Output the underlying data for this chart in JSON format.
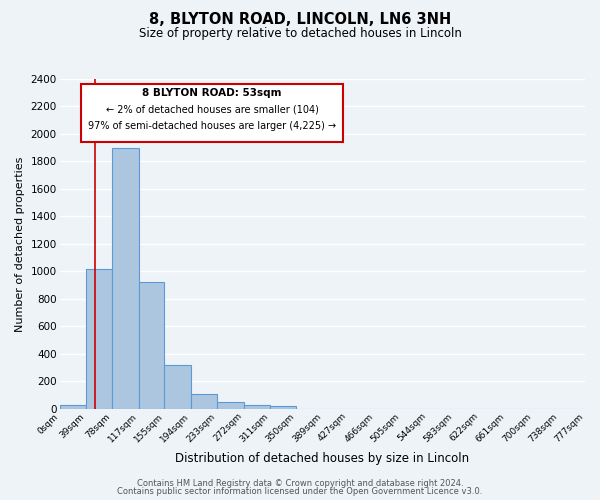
{
  "title": "8, BLYTON ROAD, LINCOLN, LN6 3NH",
  "subtitle": "Size of property relative to detached houses in Lincoln",
  "xlabel": "Distribution of detached houses by size in Lincoln",
  "ylabel": "Number of detached properties",
  "bin_edges": [
    0,
    39,
    78,
    117,
    155,
    194,
    233,
    272,
    311,
    350,
    389,
    427,
    466,
    505,
    544,
    583,
    622,
    661,
    700,
    738,
    777
  ],
  "bin_labels": [
    "0sqm",
    "39sqm",
    "78sqm",
    "117sqm",
    "155sqm",
    "194sqm",
    "233sqm",
    "272sqm",
    "311sqm",
    "350sqm",
    "389sqm",
    "427sqm",
    "466sqm",
    "505sqm",
    "544sqm",
    "583sqm",
    "622sqm",
    "661sqm",
    "700sqm",
    "738sqm",
    "777sqm"
  ],
  "counts": [
    25,
    1020,
    1900,
    920,
    320,
    110,
    50,
    25,
    20,
    0,
    0,
    0,
    0,
    0,
    0,
    0,
    0,
    0,
    0,
    0
  ],
  "bar_color": "#adc6e0",
  "bar_edge_color": "#5b9bd5",
  "bar_linewidth": 0.8,
  "background_color": "#eef3f8",
  "grid_color": "#ffffff",
  "red_line_x": 53,
  "annotation_title": "8 BLYTON ROAD: 53sqm",
  "annotation_line1": "← 2% of detached houses are smaller (104)",
  "annotation_line2": "97% of semi-detached houses are larger (4,225) →",
  "ylim": [
    0,
    2400
  ],
  "yticks": [
    0,
    200,
    400,
    600,
    800,
    1000,
    1200,
    1400,
    1600,
    1800,
    2000,
    2200,
    2400
  ],
  "footer1": "Contains HM Land Registry data © Crown copyright and database right 2024.",
  "footer2": "Contains public sector information licensed under the Open Government Licence v3.0."
}
